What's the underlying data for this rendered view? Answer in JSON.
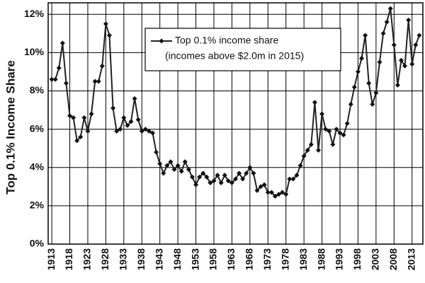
{
  "chart_data": {
    "type": "line",
    "y_label": "Top 0.1% Income Share",
    "x": [
      1913,
      1914,
      1915,
      1916,
      1917,
      1918,
      1919,
      1920,
      1921,
      1922,
      1923,
      1924,
      1925,
      1926,
      1927,
      1928,
      1929,
      1930,
      1931,
      1932,
      1933,
      1934,
      1935,
      1936,
      1937,
      1938,
      1939,
      1940,
      1941,
      1942,
      1943,
      1944,
      1945,
      1946,
      1947,
      1948,
      1949,
      1950,
      1951,
      1952,
      1953,
      1954,
      1955,
      1956,
      1957,
      1958,
      1959,
      1960,
      1961,
      1962,
      1963,
      1964,
      1965,
      1966,
      1967,
      1968,
      1969,
      1970,
      1971,
      1972,
      1973,
      1974,
      1975,
      1976,
      1977,
      1978,
      1979,
      1980,
      1981,
      1982,
      1983,
      1984,
      1985,
      1986,
      1987,
      1988,
      1989,
      1990,
      1991,
      1992,
      1993,
      1994,
      1995,
      1996,
      1997,
      1998,
      1999,
      2000,
      2001,
      2002,
      2003,
      2004,
      2005,
      2006,
      2007,
      2008,
      2009,
      2010,
      2011,
      2012,
      2013,
      2014,
      2015
    ],
    "series": [
      {
        "name": "Top 0.1% income share",
        "note": "(incomes above $2.0m in 2015)",
        "color": "#222222",
        "values": [
          8.6,
          8.6,
          9.2,
          10.5,
          8.4,
          6.7,
          6.6,
          5.4,
          5.6,
          6.6,
          5.9,
          6.8,
          8.5,
          8.5,
          9.3,
          11.5,
          10.9,
          7.1,
          5.9,
          6.0,
          6.6,
          6.2,
          6.4,
          7.6,
          6.5,
          5.9,
          6.0,
          5.9,
          5.8,
          4.8,
          4.2,
          3.7,
          4.1,
          4.3,
          3.9,
          4.1,
          3.8,
          4.3,
          3.9,
          3.5,
          3.1,
          3.5,
          3.7,
          3.5,
          3.2,
          3.3,
          3.6,
          3.2,
          3.6,
          3.3,
          3.2,
          3.4,
          3.7,
          3.4,
          3.7,
          4.0,
          3.7,
          2.8,
          3.0,
          3.1,
          2.7,
          2.7,
          2.5,
          2.6,
          2.7,
          2.6,
          3.4,
          3.4,
          3.6,
          4.1,
          4.6,
          4.9,
          5.2,
          7.4,
          4.9,
          6.8,
          6.0,
          5.9,
          5.2,
          6.0,
          5.8,
          5.7,
          6.3,
          7.3,
          8.2,
          9.0,
          9.7,
          10.9,
          8.4,
          7.3,
          7.9,
          9.5,
          11.0,
          11.6,
          12.3,
          10.4,
          8.3,
          9.6,
          9.3,
          11.7,
          9.4,
          10.4,
          10.9
        ]
      }
    ],
    "xlim": [
      1912,
      2016
    ],
    "xticks": [
      1913,
      1918,
      1923,
      1928,
      1933,
      1938,
      1943,
      1948,
      1953,
      1958,
      1963,
      1968,
      1973,
      1978,
      1983,
      1988,
      1993,
      1998,
      2003,
      2008,
      2013
    ],
    "ylim": [
      0,
      12.6
    ],
    "yticks": [
      {
        "value": 0,
        "label": "0%"
      },
      {
        "value": 2,
        "label": "2%"
      },
      {
        "value": 4,
        "label": "4%"
      },
      {
        "value": 6,
        "label": "6%"
      },
      {
        "value": 8,
        "label": "8%"
      },
      {
        "value": 10,
        "label": "10%"
      },
      {
        "value": 12,
        "label": "12%"
      }
    ],
    "grid": true,
    "legend": "top"
  }
}
